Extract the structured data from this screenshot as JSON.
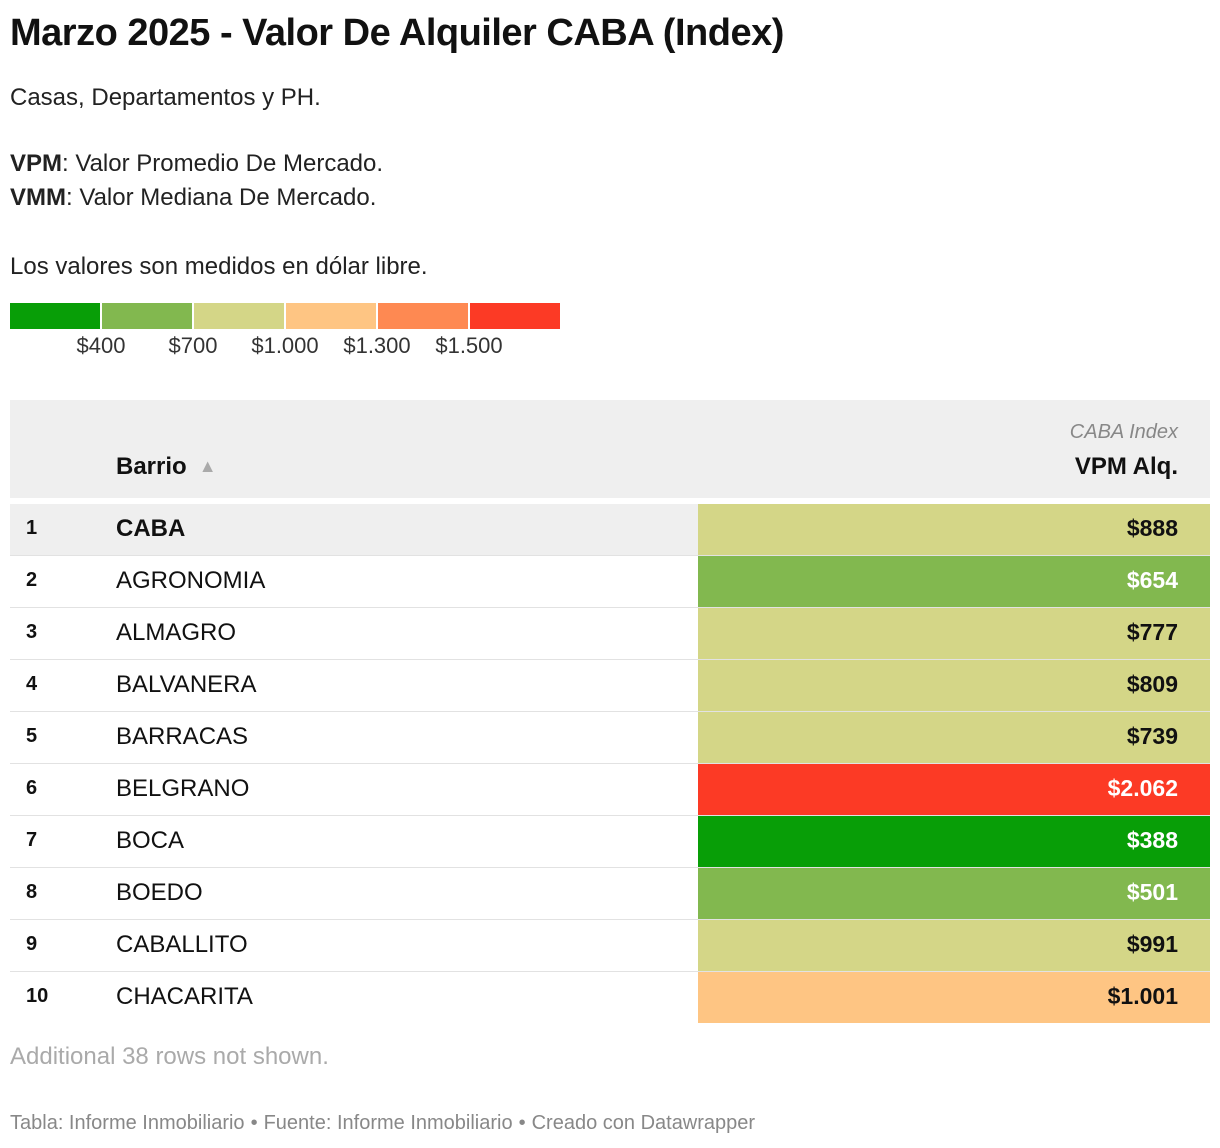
{
  "title": "Marzo 2025 - Valor De Alquiler CABA (Index)",
  "description": {
    "subtitle": "Casas, Departamentos y PH.",
    "vpm_abbr": "VPM",
    "vpm_text": ": Valor Promedio De Mercado.",
    "vmm_abbr": "VMM",
    "vmm_text": ": Valor Mediana De Mercado.",
    "currency_note": "Los valores son medidos en dólar libre."
  },
  "legend": {
    "colors": [
      "#089e07",
      "#82b84f",
      "#d4d687",
      "#fec583",
      "#fe8952",
      "#fc3a25"
    ],
    "ticks": [
      "$400",
      "$700",
      "$1.000",
      "$1.300",
      "$1.500"
    ]
  },
  "table": {
    "col_barrio": "Barrio",
    "col_value_supertitle": "CABA Index",
    "col_value": "VPM Alq."
  },
  "chart_data": {
    "type": "table",
    "columns": [
      "#",
      "Barrio",
      "VPM Alq."
    ],
    "rows": [
      {
        "rank": "1",
        "barrio": "CABA",
        "value": 888,
        "label": "$888",
        "color": "#d4d687",
        "text_color": "#111111",
        "highlight": true
      },
      {
        "rank": "2",
        "barrio": "AGRONOMIA",
        "value": 654,
        "label": "$654",
        "color": "#82b84f",
        "text_color": "#ffffff"
      },
      {
        "rank": "3",
        "barrio": "ALMAGRO",
        "value": 777,
        "label": "$777",
        "color": "#d4d687",
        "text_color": "#111111"
      },
      {
        "rank": "4",
        "barrio": "BALVANERA",
        "value": 809,
        "label": "$809",
        "color": "#d4d687",
        "text_color": "#111111"
      },
      {
        "rank": "5",
        "barrio": "BARRACAS",
        "value": 739,
        "label": "$739",
        "color": "#d4d687",
        "text_color": "#111111"
      },
      {
        "rank": "6",
        "barrio": "BELGRANO",
        "value": 2062,
        "label": "$2.062",
        "color": "#fc3a25",
        "text_color": "#ffffff"
      },
      {
        "rank": "7",
        "barrio": "BOCA",
        "value": 388,
        "label": "$388",
        "color": "#089e07",
        "text_color": "#ffffff"
      },
      {
        "rank": "8",
        "barrio": "BOEDO",
        "value": 501,
        "label": "$501",
        "color": "#82b84f",
        "text_color": "#ffffff"
      },
      {
        "rank": "9",
        "barrio": "CABALLITO",
        "value": 991,
        "label": "$991",
        "color": "#d4d687",
        "text_color": "#111111"
      },
      {
        "rank": "10",
        "barrio": "CHACARITA",
        "value": 1001,
        "label": "$1.001",
        "color": "#fec583",
        "text_color": "#111111"
      }
    ]
  },
  "note": "Additional 38 rows not shown.",
  "footer": {
    "table_credit": "Tabla: Informe Inmobiliario",
    "source": "Fuente: Informe Inmobiliario",
    "created": "Creado con Datawrapper",
    "separator": "•"
  }
}
